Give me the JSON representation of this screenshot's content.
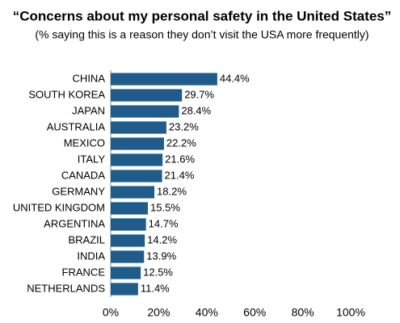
{
  "chart_data": {
    "type": "barh",
    "title": "“Concerns about my personal safety in the United States”",
    "subtitle": "(% saying this is a reason they don’t visit the USA more frequently)",
    "categories": [
      "CHINA",
      "SOUTH KOREA",
      "JAPAN",
      "AUSTRALIA",
      "MEXICO",
      "ITALY",
      "CANADA",
      "GERMANY",
      "UNITED KINGDOM",
      "ARGENTINA",
      "BRAZIL",
      "INDIA",
      "FRANCE",
      "NETHERLANDS"
    ],
    "values": [
      44.4,
      29.7,
      28.4,
      23.2,
      22.2,
      21.6,
      21.4,
      18.2,
      15.5,
      14.7,
      14.2,
      13.9,
      12.5,
      11.4
    ],
    "value_labels": [
      "44.4%",
      "29.7%",
      "28.4%",
      "23.2%",
      "22.2%",
      "21.6%",
      "21.4%",
      "18.2%",
      "15.5%",
      "14.7%",
      "14.2%",
      "13.9%",
      "12.5%",
      "11.4%"
    ],
    "color": "#1f5c8b",
    "xlim": [
      0,
      100
    ],
    "xticks": [
      {
        "value": 0,
        "label": "0%"
      },
      {
        "value": 20,
        "label": "20%"
      },
      {
        "value": 40,
        "label": "40%"
      },
      {
        "value": 60,
        "label": "60%"
      },
      {
        "value": 80,
        "label": "80%"
      },
      {
        "value": 100,
        "label": "100%"
      }
    ],
    "grid": false
  }
}
